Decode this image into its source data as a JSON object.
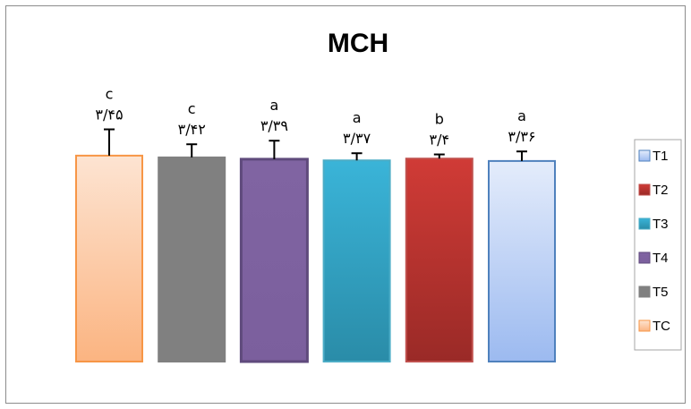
{
  "chart_data": {
    "type": "bar",
    "title": "MCH",
    "xlabel": "",
    "ylabel": "",
    "categories": [
      "TC",
      "T5",
      "T4",
      "T3",
      "T2",
      "T1"
    ],
    "values": [
      3.45,
      3.42,
      3.39,
      3.37,
      3.4,
      3.36
    ],
    "value_labels": [
      "۳/۴۵",
      "۳/۴۲",
      "۳/۳۹",
      "۳/۳۷",
      "۳/۴",
      "۳/۳۶"
    ],
    "significance_letters": [
      "c",
      "c",
      "a",
      "a",
      "b",
      "a"
    ],
    "error_bars": [
      0.44,
      0.22,
      0.31,
      0.12,
      0.07,
      0.16
    ],
    "ylim": [
      0,
      4
    ],
    "grid": false,
    "axes_visible": false,
    "legend": {
      "placement": "right",
      "entries": [
        "T1",
        "T2",
        "T3",
        "T4",
        "T5",
        "TC"
      ]
    },
    "colors": {
      "TC": {
        "top": "#fde4d2",
        "bottom": "#fbb481",
        "border": "#f79646"
      },
      "T5": {
        "top": "#808080",
        "bottom": "#808080",
        "border": "#808080"
      },
      "T4": {
        "top": "#8064a2",
        "bottom": "#7b5f9d",
        "border": "#5f4a7c"
      },
      "T3": {
        "top": "#3ab4d8",
        "bottom": "#2a8ca8",
        "border": "#4bacc6"
      },
      "T2": {
        "top": "#d03b36",
        "bottom": "#9a2a27",
        "border": "#c0504d"
      },
      "T1": {
        "top": "#e4ecfb",
        "bottom": "#9cbaf0",
        "border": "#4f81bd"
      }
    }
  }
}
